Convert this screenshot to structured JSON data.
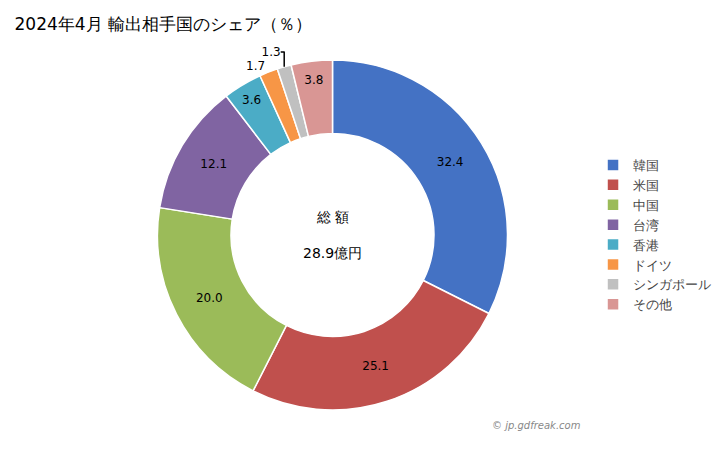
{
  "chart_data": {
    "type": "donut",
    "title": "2024年4月 輸出相手国のシェア（％）",
    "categories": [
      "韓国",
      "米国",
      "中国",
      "台湾",
      "香港",
      "ドイツ",
      "シンガポール",
      "その他"
    ],
    "values": [
      32.4,
      25.1,
      20.0,
      12.1,
      3.6,
      1.7,
      1.3,
      3.8
    ],
    "value_labels": [
      "32.4",
      "25.1",
      "20.0",
      "12.1",
      "3.6",
      "1.7",
      "1.3",
      "3.8"
    ],
    "colors": [
      "#4472C4",
      "#C0504D",
      "#9BBB59",
      "#8064A2",
      "#4BACC6",
      "#F79646",
      "#C0C0C0",
      "#D99694"
    ],
    "data_labels": true,
    "legend": "right",
    "annotations": [
      "総 額",
      "28.9億円",
      "© jp.gdfreak.com"
    ]
  }
}
